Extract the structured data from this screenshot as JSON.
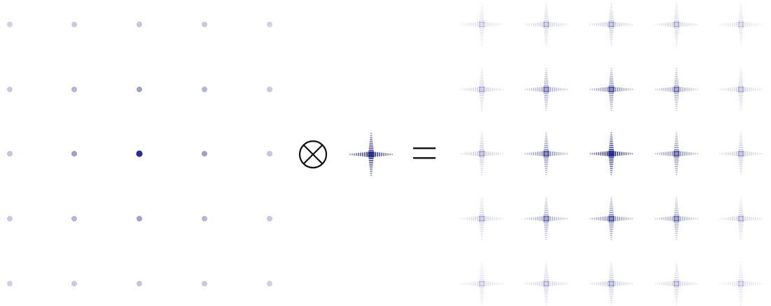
{
  "diagram": {
    "operator_symbol": "⊗",
    "equals_symbol": "=",
    "accent_color": "#2c2f87",
    "background_color": "#ffffff",
    "grid_rows": 5,
    "grid_cols": 5,
    "lattice_intensity": [
      [
        0.22,
        0.26,
        0.28,
        0.26,
        0.22
      ],
      [
        0.26,
        0.35,
        0.45,
        0.35,
        0.26
      ],
      [
        0.28,
        0.45,
        1.0,
        0.45,
        0.28
      ],
      [
        0.26,
        0.35,
        0.45,
        0.35,
        0.26
      ],
      [
        0.22,
        0.26,
        0.28,
        0.26,
        0.22
      ]
    ],
    "result_intensity": [
      [
        0.14,
        0.2,
        0.24,
        0.2,
        0.14
      ],
      [
        0.2,
        0.4,
        0.55,
        0.4,
        0.2
      ],
      [
        0.24,
        0.55,
        1.0,
        0.55,
        0.24
      ],
      [
        0.2,
        0.4,
        0.55,
        0.4,
        0.2
      ],
      [
        0.14,
        0.2,
        0.24,
        0.2,
        0.14
      ]
    ]
  }
}
